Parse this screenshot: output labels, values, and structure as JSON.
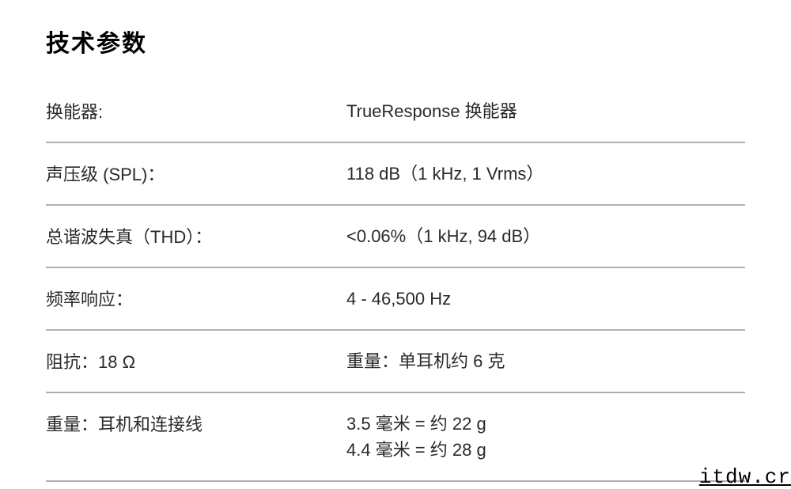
{
  "title": "技术参数",
  "rows": [
    {
      "label": "换能器:",
      "value": "TrueResponse 换能器"
    },
    {
      "label": "声压级 (SPL)：",
      "value": "118 dB（1 kHz, 1 Vrms）"
    },
    {
      "label": "总谐波失真（THD）：",
      "value": "<0.06%（1 kHz, 94 dB）"
    },
    {
      "label": "频率响应：",
      "value": "4 - 46,500 Hz"
    },
    {
      "label": "阻抗：18 Ω",
      "value": "重量：单耳机约 6 克"
    },
    {
      "label": "重量：耳机和连接线",
      "value": "3.5 毫米 = 约 22 g\n4.4 毫米 = 约 28 g"
    }
  ],
  "watermark": "itdw.cr",
  "style": {
    "background_color": "#ffffff",
    "text_color": "#2a2a2a",
    "title_color": "#000000",
    "border_color": "#b0b0b0",
    "title_fontsize": 30,
    "body_fontsize": 22,
    "label_col_width": 380,
    "row_padding_y": 22,
    "border_width": 2
  }
}
